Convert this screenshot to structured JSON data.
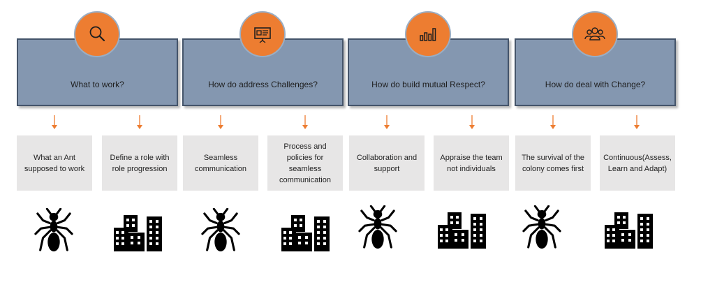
{
  "columns": [
    {
      "heading": "What to work?",
      "icon": "magnifier-icon",
      "cards": [
        {
          "text": "What an Ant supposed to work",
          "image": "ant-icon"
        },
        {
          "text": "Define a role with role progression",
          "image": "buildings-icon"
        }
      ]
    },
    {
      "heading": "How do address Challenges?",
      "icon": "presentation-board-icon",
      "cards": [
        {
          "text": "Seamless communication",
          "image": "ant-icon"
        },
        {
          "text": "Process and policies for seamless communication",
          "image": "buildings-icon"
        }
      ]
    },
    {
      "heading": "How do build mutual Respect?",
      "icon": "bar-chart-icon",
      "cards": [
        {
          "text": "Collaboration and support",
          "image": "ant-icon"
        },
        {
          "text": "Appraise the team not individuals",
          "image": "buildings-icon"
        }
      ]
    },
    {
      "heading": "How do deal with Change?",
      "icon": "people-group-icon",
      "cards": [
        {
          "text": "The survival of the colony comes first",
          "image": "ant-icon"
        },
        {
          "text": "Continuous(Assess, Learn and Adapt)",
          "image": "buildings-icon"
        }
      ]
    }
  ],
  "colors": {
    "header_fill": "#8497b0",
    "header_border": "#44546a",
    "circle_fill": "#ed7d31",
    "arrow": "#ed7d31",
    "card_fill": "#e7e6e6",
    "silhouette": "#000000"
  }
}
